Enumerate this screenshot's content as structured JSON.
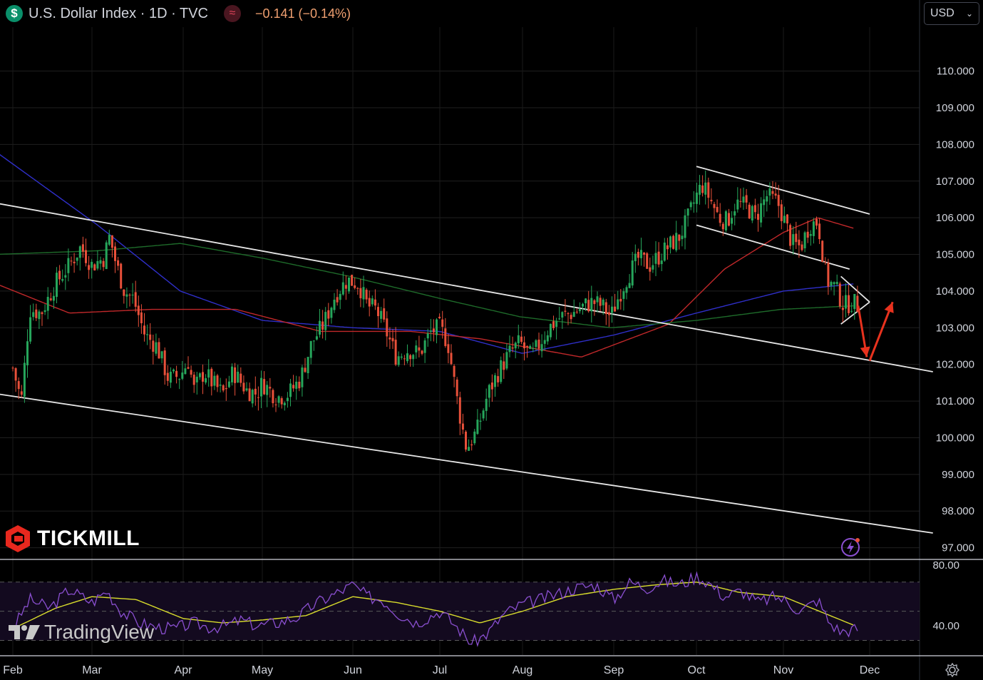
{
  "header": {
    "symbol": "U.S. Dollar Index · 1D · TVC",
    "change": "−0.141 (−0.14%)",
    "dollar_icon": "$",
    "wave_icon": "≈"
  },
  "currency_selector": {
    "value": "USD"
  },
  "branding": {
    "broker": "TICKMILL",
    "platform": "TradingView"
  },
  "colors": {
    "up": "#26a65b",
    "down": "#e8503a",
    "background": "#000000",
    "sma_blue": "#2f2fc9",
    "sma_red": "#c0282a",
    "sma_green": "#1e6b2a",
    "rsi": "#8a4fd0",
    "rsi_ma": "#d8dc2c",
    "arrow": "#e8321e"
  },
  "chart_data": {
    "type": "candlestick",
    "price_axis": {
      "ticks": [
        "110.000",
        "109.000",
        "108.000",
        "107.000",
        "106.000",
        "105.000",
        "104.000",
        "103.000",
        "102.000",
        "101.000",
        "100.000",
        "99.000",
        "98.000",
        "97.000"
      ],
      "range": [
        96.7,
        111.2
      ]
    },
    "rsi_axis": {
      "ticks": [
        "80.00",
        "40.00"
      ],
      "range": [
        20,
        85
      ],
      "bands": [
        70,
        50,
        30
      ]
    },
    "time_axis": [
      "Feb",
      "Mar",
      "Apr",
      "May",
      "Jun",
      "Jul",
      "Aug",
      "Sep",
      "Oct",
      "Nov",
      "Dec"
    ],
    "price_anchors": [
      [
        "Feb",
        101.9
      ],
      [
        "Feb+3",
        101.0
      ],
      [
        "Feb+6",
        103.5
      ],
      [
        "Feb+10",
        103.4
      ],
      [
        "Feb+15",
        104.2
      ],
      [
        "Feb+20",
        104.7
      ],
      [
        "Feb+24",
        105.2
      ],
      [
        "Mar",
        104.7
      ],
      [
        "Mar+4",
        104.9
      ],
      [
        "Mar+6",
        105.5
      ],
      [
        "Mar+8",
        104.8
      ],
      [
        "Mar+11",
        104.0
      ],
      [
        "Mar+14",
        103.8
      ],
      [
        "Mar+18",
        102.8
      ],
      [
        "Mar+22",
        102.5
      ],
      [
        "Mar+26",
        101.6
      ],
      [
        "Mar+30",
        101.7
      ],
      [
        "Apr+2",
        102.1
      ],
      [
        "Apr+4",
        101.3
      ],
      [
        "Apr+8",
        101.8
      ],
      [
        "Apr+11",
        101.5
      ],
      [
        "Apr+15",
        101.2
      ],
      [
        "Apr+19",
        101.8
      ],
      [
        "Apr+24",
        101.3
      ],
      [
        "Apr+28",
        101.2
      ],
      [
        "May",
        101.5
      ],
      [
        "May+5",
        101.1
      ],
      [
        "May+9",
        101.2
      ],
      [
        "May+13",
        101.6
      ],
      [
        "May+17",
        102.6
      ],
      [
        "May+21",
        103.1
      ],
      [
        "May+25",
        103.9
      ],
      [
        "May+29",
        104.3
      ],
      [
        "Jun+2",
        104.2
      ],
      [
        "Jun+5",
        103.6
      ],
      [
        "Jun+8",
        103.5
      ],
      [
        "Jun+11",
        103.0
      ],
      [
        "Jun+15",
        102.2
      ],
      [
        "Jun+19",
        102.4
      ],
      [
        "Jun+23",
        102.3
      ],
      [
        "Jun+27",
        102.9
      ],
      [
        "Jul",
        103.0
      ],
      [
        "Jul+3",
        102.6
      ],
      [
        "Jul+7",
        100.8
      ],
      [
        "Jul+10",
        99.7
      ],
      [
        "Jul+14",
        100.2
      ],
      [
        "Jul+18",
        101.2
      ],
      [
        "Jul+22",
        101.8
      ],
      [
        "Jul+26",
        102.3
      ],
      [
        "Jul+30",
        102.6
      ],
      [
        "Aug+3",
        102.2
      ],
      [
        "Aug+6",
        102.6
      ],
      [
        "Aug+9",
        103.0
      ],
      [
        "Aug+13",
        103.3
      ],
      [
        "Aug+17",
        103.4
      ],
      [
        "Aug+21",
        103.6
      ],
      [
        "Aug+24",
        103.7
      ],
      [
        "Aug+27",
        103.6
      ],
      [
        "Aug+30",
        103.3
      ],
      [
        "Sep+2",
        103.9
      ],
      [
        "Sep+5",
        104.4
      ],
      [
        "Sep+9",
        104.9
      ],
      [
        "Sep+13",
        104.7
      ],
      [
        "Sep+17",
        105.0
      ],
      [
        "Sep+21",
        105.3
      ],
      [
        "Sep+24",
        105.5
      ],
      [
        "Sep+27",
        106.0
      ],
      [
        "Oct",
        106.6
      ],
      [
        "Oct+2",
        106.9
      ],
      [
        "Oct+5",
        106.5
      ],
      [
        "Oct+8",
        106.0
      ],
      [
        "Oct+11",
        105.9
      ],
      [
        "Oct+14",
        106.4
      ],
      [
        "Oct+18",
        106.3
      ],
      [
        "Oct+21",
        106.0
      ],
      [
        "Oct+25",
        106.6
      ],
      [
        "Oct+29",
        106.4
      ],
      [
        "Nov",
        106.0
      ],
      [
        "Nov+3",
        105.3
      ],
      [
        "Nov+6",
        105.2
      ],
      [
        "Nov+9",
        105.8
      ],
      [
        "Nov+12",
        105.9
      ],
      [
        "Nov+15",
        104.3
      ],
      [
        "Nov+18",
        104.1
      ],
      [
        "Nov+21",
        103.6
      ],
      [
        "Nov+24",
        103.7
      ],
      [
        "Nov+26",
        103.6
      ]
    ],
    "rsi_anchors": [
      [
        "Feb",
        38
      ],
      [
        "Feb+6",
        58
      ],
      [
        "Feb+13",
        52
      ],
      [
        "Feb+20",
        65
      ],
      [
        "Mar",
        56
      ],
      [
        "Mar+5",
        64
      ],
      [
        "Mar+10",
        50
      ],
      [
        "Mar+16",
        42
      ],
      [
        "Mar+22",
        39
      ],
      [
        "Mar+28",
        38
      ],
      [
        "Apr+4",
        42
      ],
      [
        "Apr+10",
        39
      ],
      [
        "Apr+16",
        40
      ],
      [
        "Apr+22",
        44
      ],
      [
        "Apr+28",
        40
      ],
      [
        "May+5",
        42
      ],
      [
        "May+12",
        46
      ],
      [
        "May+18",
        55
      ],
      [
        "May+25",
        62
      ],
      [
        "May+31",
        68
      ],
      [
        "Jun+5",
        60
      ],
      [
        "Jun+10",
        58
      ],
      [
        "Jun+16",
        48
      ],
      [
        "Jun+22",
        42
      ],
      [
        "Jun+28",
        48
      ],
      [
        "Jul",
        50
      ],
      [
        "Jul+6",
        40
      ],
      [
        "Jul+12",
        28
      ],
      [
        "Jul+18",
        35
      ],
      [
        "Jul+24",
        48
      ],
      [
        "Aug",
        55
      ],
      [
        "Aug+6",
        58
      ],
      [
        "Aug+12",
        62
      ],
      [
        "Aug+18",
        66
      ],
      [
        "Aug+25",
        68
      ],
      [
        "Aug+31",
        58
      ],
      [
        "Sep+6",
        70
      ],
      [
        "Sep+12",
        66
      ],
      [
        "Sep+18",
        71
      ],
      [
        "Sep+24",
        68
      ],
      [
        "Sep+30",
        74
      ],
      [
        "Oct+4",
        70
      ],
      [
        "Oct+10",
        60
      ],
      [
        "Oct+16",
        64
      ],
      [
        "Oct+22",
        56
      ],
      [
        "Oct+28",
        60
      ],
      [
        "Nov",
        58
      ],
      [
        "Nov+6",
        50
      ],
      [
        "Nov+12",
        58
      ],
      [
        "Nov+16",
        42
      ],
      [
        "Nov+20",
        36
      ],
      [
        "Nov+26",
        38
      ]
    ],
    "moving_averages": [
      {
        "color": "sma_blue",
        "anchors": [
          [
            "Feb-6",
            107.8
          ],
          [
            "Feb+30",
            105.8
          ],
          [
            "Mar+30",
            104.0
          ],
          [
            "May",
            103.2
          ],
          [
            "Jun",
            103.0
          ],
          [
            "Jul",
            102.9
          ],
          [
            "Aug",
            102.3
          ],
          [
            "Sep",
            102.8
          ],
          [
            "Oct",
            103.4
          ],
          [
            "Nov",
            104.0
          ],
          [
            "Nov+25",
            104.2
          ]
        ]
      },
      {
        "color": "sma_red",
        "anchors": [
          [
            "Feb-6",
            104.2
          ],
          [
            "Feb+20",
            103.4
          ],
          [
            "Mar+20",
            103.5
          ],
          [
            "Apr+20",
            103.5
          ],
          [
            "May+20",
            102.9
          ],
          [
            "Jun+20",
            102.9
          ],
          [
            "Jul+15",
            102.7
          ],
          [
            "Aug+20",
            102.2
          ],
          [
            "Sep+20",
            103.1
          ],
          [
            "Oct+10",
            104.6
          ],
          [
            "Nov",
            105.6
          ],
          [
            "Nov+12",
            106.0
          ],
          [
            "Nov+25",
            105.7
          ]
        ]
      },
      {
        "color": "sma_green",
        "anchors": [
          [
            "Feb-6",
            105.0
          ],
          [
            "Feb+30",
            105.1
          ],
          [
            "Mar+30",
            105.3
          ],
          [
            "Apr+30",
            104.9
          ],
          [
            "May+30",
            104.4
          ],
          [
            "Jun+30",
            103.8
          ],
          [
            "Jul+30",
            103.3
          ],
          [
            "Aug+30",
            103.0
          ],
          [
            "Sep+30",
            103.2
          ],
          [
            "Oct+30",
            103.5
          ],
          [
            "Nov+25",
            103.6
          ]
        ]
      },
      {
        "color": "rsi_ma",
        "panel": "rsi",
        "anchors": [
          [
            "Feb",
            38
          ],
          [
            "Feb+15",
            52
          ],
          [
            "Mar",
            60
          ],
          [
            "Mar+15",
            58
          ],
          [
            "Apr",
            45
          ],
          [
            "Apr+15",
            42
          ],
          [
            "May",
            44
          ],
          [
            "May+15",
            47
          ],
          [
            "Jun",
            60
          ],
          [
            "Jun+15",
            56
          ],
          [
            "Jul",
            50
          ],
          [
            "Jul+15",
            42
          ],
          [
            "Aug",
            50
          ],
          [
            "Aug+15",
            60
          ],
          [
            "Sep",
            65
          ],
          [
            "Sep+15",
            68
          ],
          [
            "Oct",
            70
          ],
          [
            "Oct+15",
            63
          ],
          [
            "Nov",
            60
          ],
          [
            "Nov+15",
            48
          ],
          [
            "Nov+25",
            40
          ]
        ]
      }
    ],
    "trendlines": [
      {
        "from": [
          "Feb-6",
          106.4
        ],
        "to": [
          "Dec+22",
          101.8
        ]
      },
      {
        "from": [
          "Feb-6",
          101.2
        ],
        "to": [
          "Dec+22",
          97.4
        ]
      },
      {
        "from": [
          "Oct",
          107.4
        ],
        "to": [
          "Nov+30",
          106.1
        ]
      },
      {
        "from": [
          "Sep+30",
          105.8
        ],
        "to": [
          "Nov+23",
          104.6
        ]
      },
      {
        "from": [
          "Nov+20",
          104.4
        ],
        "to": [
          "Nov+30",
          103.7
        ]
      },
      {
        "from": [
          "Nov+20",
          103.1
        ],
        "to": [
          "Nov+30",
          103.7
        ]
      }
    ],
    "arrows": [
      {
        "from": [
          "Nov+26",
          103.6
        ],
        "to": [
          "Nov+29",
          102.2
        ]
      },
      {
        "from": [
          "Nov+30",
          102.1
        ],
        "to": [
          "Dec+8",
          103.7
        ]
      }
    ],
    "rsi_visible_range": [
      20,
      85
    ]
  }
}
